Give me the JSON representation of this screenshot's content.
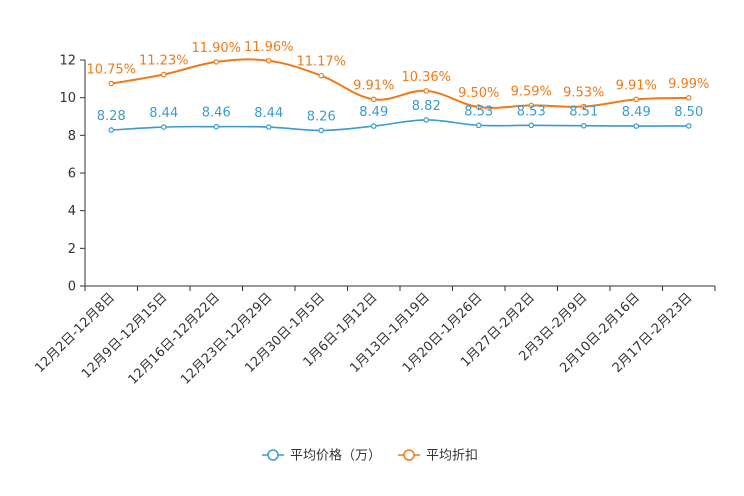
{
  "chart_data": {
    "type": "line",
    "categories": [
      "12月2日-12月8日",
      "12月9日-12月15日",
      "12月16日-12月22日",
      "12月23日-12月29日",
      "12月30日-1月5日",
      "1月6日-1月12日",
      "1月13日-1月19日",
      "1月20日-1月26日",
      "1月27日-2月2日",
      "2月3日-2月9日",
      "2月10日-2月16日",
      "2月17日-2月23日"
    ],
    "series": [
      {
        "name": "平均价格（万）",
        "color": "#3a9bd0",
        "values": [
          8.28,
          8.44,
          8.46,
          8.44,
          8.26,
          8.49,
          8.82,
          8.53,
          8.53,
          8.51,
          8.49,
          8.5
        ],
        "labels": [
          "8.28",
          "8.44",
          "8.46",
          "8.44",
          "8.26",
          "8.49",
          "8.82",
          "8.53",
          "8.53",
          "8.51",
          "8.49",
          "8.50"
        ]
      },
      {
        "name": "平均折扣",
        "color": "#f07a1a",
        "values": [
          10.75,
          11.23,
          11.9,
          11.96,
          11.17,
          9.91,
          10.36,
          9.5,
          9.59,
          9.53,
          9.91,
          9.99
        ],
        "labels": [
          "10.75%",
          "11.23%",
          "11.90%",
          "11.96%",
          "11.17%",
          "9.91%",
          "10.36%",
          "9.50%",
          "9.59%",
          "9.53%",
          "9.91%",
          "9.99%"
        ]
      }
    ],
    "yticks": [
      "0",
      "2",
      "4",
      "6",
      "8",
      "10",
      "12"
    ],
    "ylim": [
      0,
      12
    ],
    "grid": false,
    "legend": "bottom-center"
  }
}
